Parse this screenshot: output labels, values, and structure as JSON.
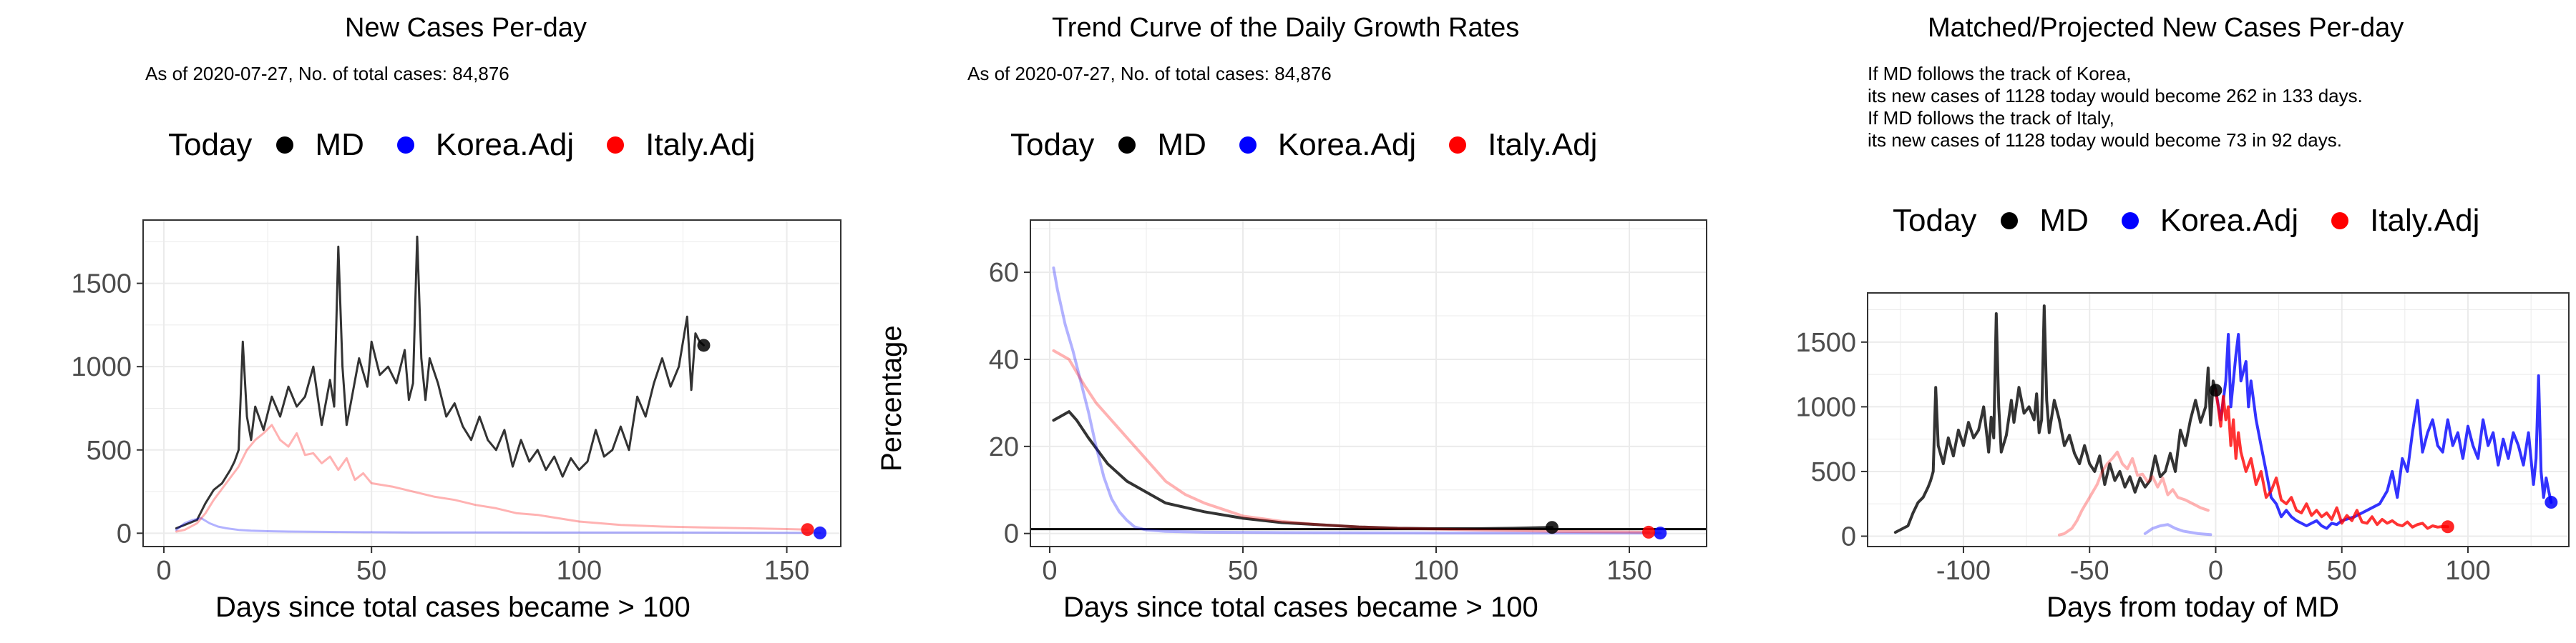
{
  "panels": [
    {
      "title": "New Cases Per-day",
      "subtitle_lines": [
        "As of 2020-07-27, No. of total cases: 84,876"
      ],
      "legend_title": "Today",
      "legend": [
        {
          "label": "MD",
          "color": "#000000"
        },
        {
          "label": "Korea.Adj",
          "color": "#0000ff"
        },
        {
          "label": "Italy.Adj",
          "color": "#ff0000"
        }
      ]
    },
    {
      "title": "Trend Curve of the Daily Growth Rates",
      "subtitle_lines": [
        "As of 2020-07-27, No. of total cases: 84,876"
      ],
      "legend_title": "Today",
      "legend": [
        {
          "label": "MD",
          "color": "#000000"
        },
        {
          "label": "Korea.Adj",
          "color": "#0000ff"
        },
        {
          "label": "Italy.Adj",
          "color": "#ff0000"
        }
      ]
    },
    {
      "title": "Matched/Projected New Cases Per-day",
      "subtitle_lines": [
        "If MD follows the track of Korea,",
        "its new cases of 1128 today would become 262 in 133 days.",
        "If MD follows the track of Italy,",
        "its new cases of 1128 today would become 73 in 92 days."
      ],
      "legend_title": "Today",
      "legend": [
        {
          "label": "MD",
          "color": "#000000"
        },
        {
          "label": "Korea.Adj",
          "color": "#0000ff"
        },
        {
          "label": "Italy.Adj",
          "color": "#ff0000"
        }
      ]
    }
  ],
  "chart_data": [
    {
      "type": "line",
      "title": "New Cases Per-day",
      "xlabel": "Days since total cases became > 100",
      "ylabel": "",
      "xlim": [
        -5,
        163
      ],
      "ylim": [
        -80,
        1880
      ],
      "xticks": [
        0,
        50,
        100,
        150
      ],
      "yticks": [
        0,
        500,
        1000,
        1500
      ],
      "grid": true,
      "legend_position": "top",
      "series": [
        {
          "name": "MD",
          "color": "#000000",
          "opacity": 0.8,
          "width": 3,
          "x": [
            3,
            5,
            8,
            10,
            12,
            14,
            16,
            17,
            18,
            19,
            20,
            21,
            22,
            24,
            26,
            28,
            30,
            32,
            34,
            36,
            38,
            40,
            41,
            42,
            43,
            44,
            45,
            47,
            49,
            50,
            52,
            54,
            56,
            58,
            59,
            60,
            61,
            62,
            63,
            64,
            66,
            68,
            70,
            72,
            74,
            76,
            78,
            80,
            82,
            84,
            86,
            88,
            90,
            92,
            94,
            96,
            98,
            100,
            102,
            104,
            106,
            108,
            110,
            112,
            114,
            116,
            118,
            120,
            122,
            124,
            126,
            127,
            128,
            129,
            130
          ],
          "y": [
            30,
            50,
            80,
            180,
            260,
            300,
            380,
            430,
            500,
            1150,
            700,
            560,
            760,
            620,
            820,
            700,
            880,
            760,
            820,
            1000,
            650,
            920,
            760,
            1720,
            1000,
            650,
            780,
            1050,
            880,
            1150,
            950,
            1000,
            900,
            1100,
            800,
            900,
            1780,
            1050,
            800,
            1050,
            900,
            700,
            780,
            640,
            560,
            700,
            560,
            500,
            620,
            400,
            560,
            430,
            500,
            380,
            460,
            340,
            450,
            380,
            430,
            620,
            460,
            500,
            640,
            500,
            820,
            700,
            900,
            1050,
            880,
            1000,
            1300,
            860,
            1200,
            1150,
            1128
          ],
          "point": [
            130,
            1128
          ]
        },
        {
          "name": "Korea.Adj",
          "color": "#0000ff",
          "opacity": 0.3,
          "width": 3,
          "x": [
            3,
            5,
            7,
            9,
            11,
            13,
            15,
            18,
            21,
            25,
            30,
            40,
            50,
            60,
            80,
            100,
            120,
            140,
            158
          ],
          "y": [
            20,
            60,
            80,
            90,
            60,
            40,
            30,
            20,
            15,
            12,
            10,
            8,
            6,
            5,
            5,
            4,
            4,
            3,
            2
          ],
          "point": [
            158,
            2
          ]
        },
        {
          "name": "Italy.Adj",
          "color": "#ff0000",
          "opacity": 0.3,
          "width": 3,
          "x": [
            3,
            5,
            8,
            10,
            12,
            15,
            18,
            20,
            22,
            24,
            26,
            28,
            30,
            32,
            34,
            36,
            38,
            40,
            42,
            44,
            46,
            48,
            50,
            55,
            60,
            65,
            70,
            75,
            80,
            85,
            90,
            95,
            100,
            105,
            110,
            115,
            120,
            130,
            140,
            150,
            155
          ],
          "y": [
            10,
            20,
            60,
            120,
            200,
            300,
            400,
            500,
            560,
            600,
            650,
            560,
            520,
            600,
            470,
            480,
            420,
            460,
            380,
            450,
            320,
            360,
            300,
            280,
            250,
            220,
            200,
            170,
            150,
            120,
            110,
            90,
            70,
            60,
            50,
            45,
            40,
            35,
            30,
            25,
            22
          ],
          "point": [
            155,
            22
          ]
        }
      ]
    },
    {
      "type": "line",
      "title": "Trend Curve of the Daily Growth Rates",
      "xlabel": "Days since total cases became > 100",
      "ylabel": "Percentage",
      "xlim": [
        -5,
        170
      ],
      "ylim": [
        -3,
        72
      ],
      "xticks": [
        0,
        50,
        100,
        150
      ],
      "yticks": [
        0,
        20,
        40,
        60
      ],
      "grid": true,
      "hline": 1,
      "legend_position": "top",
      "series": [
        {
          "name": "MD",
          "color": "#000000",
          "opacity": 0.8,
          "width": 4,
          "x": [
            1,
            3,
            5,
            7,
            10,
            15,
            20,
            30,
            40,
            50,
            60,
            70,
            80,
            90,
            100,
            110,
            120,
            130
          ],
          "y": [
            26,
            27,
            28,
            26,
            22,
            16,
            12,
            7,
            5,
            3.5,
            2.5,
            2,
            1.5,
            1.2,
            1.1,
            1.1,
            1.2,
            1.4
          ],
          "point": [
            130,
            1.4
          ]
        },
        {
          "name": "Korea.Adj",
          "color": "#0000ff",
          "opacity": 0.3,
          "width": 4,
          "x": [
            1,
            2,
            4,
            6,
            8,
            10,
            12,
            14,
            16,
            18,
            20,
            22,
            25,
            30,
            40,
            60,
            100,
            158
          ],
          "y": [
            61,
            56,
            48,
            42,
            35,
            28,
            20,
            13,
            8,
            5,
            3,
            1.5,
            0.8,
            0.5,
            0.3,
            0.2,
            0.1,
            0.1
          ],
          "point": [
            158,
            0.1
          ]
        },
        {
          "name": "Italy.Adj",
          "color": "#ff0000",
          "opacity": 0.3,
          "width": 4,
          "x": [
            1,
            3,
            5,
            7,
            9,
            12,
            15,
            18,
            21,
            24,
            27,
            30,
            35,
            40,
            45,
            50,
            60,
            70,
            80,
            90,
            110,
            130,
            155
          ],
          "y": [
            42,
            41,
            40,
            37,
            34,
            30,
            27,
            24,
            21,
            18,
            15,
            12,
            9,
            7,
            5.5,
            4,
            2.8,
            2,
            1.5,
            1.2,
            0.8,
            0.5,
            0.3
          ],
          "point": [
            155,
            0.3
          ]
        }
      ]
    },
    {
      "type": "line",
      "title": "Matched/Projected New Cases Per-day",
      "xlabel": "Days from today of MD",
      "ylabel": "",
      "xlim": [
        -138,
        140
      ],
      "ylim": [
        -80,
        1880
      ],
      "xticks": [
        -100,
        -50,
        0,
        50,
        100
      ],
      "yticks": [
        0,
        500,
        1000,
        1500
      ],
      "grid": true,
      "legend_position": "top",
      "series": [
        {
          "name": "MD",
          "color": "#000000",
          "opacity": 0.8,
          "width": 4,
          "x": [
            -127,
            -125,
            -122,
            -120,
            -118,
            -116,
            -114,
            -113,
            -112,
            -111,
            -110,
            -108,
            -106,
            -104,
            -102,
            -100,
            -98,
            -96,
            -94,
            -92,
            -90,
            -89,
            -88,
            -87,
            -86,
            -85,
            -83,
            -81,
            -80,
            -78,
            -76,
            -74,
            -72,
            -71,
            -70,
            -69,
            -68,
            -67,
            -66,
            -64,
            -62,
            -60,
            -58,
            -56,
            -54,
            -52,
            -50,
            -48,
            -46,
            -44,
            -42,
            -40,
            -38,
            -36,
            -34,
            -32,
            -30,
            -28,
            -26,
            -24,
            -22,
            -20,
            -18,
            -16,
            -14,
            -12,
            -10,
            -8,
            -6,
            -4,
            -3,
            -2,
            -1,
            0
          ],
          "y": [
            30,
            50,
            80,
            180,
            260,
            300,
            380,
            430,
            500,
            1150,
            700,
            560,
            760,
            620,
            820,
            700,
            880,
            760,
            820,
            1000,
            650,
            920,
            760,
            1720,
            1000,
            650,
            780,
            1050,
            880,
            1150,
            950,
            1000,
            900,
            1100,
            800,
            900,
            1780,
            1050,
            800,
            1050,
            900,
            700,
            780,
            640,
            560,
            700,
            560,
            500,
            620,
            400,
            560,
            430,
            500,
            380,
            460,
            340,
            450,
            380,
            430,
            620,
            460,
            500,
            640,
            500,
            820,
            700,
            900,
            1050,
            880,
            1000,
            1300,
            860,
            1200,
            1128
          ],
          "point": [
            0,
            1128
          ]
        },
        {
          "name": "Korea.Adj",
          "color": "#0000ff",
          "opacity": 0.3,
          "width": 4,
          "x": [
            -28,
            -25,
            -22,
            -19,
            -16,
            -13,
            -10,
            -7,
            -4,
            -2
          ],
          "y": [
            20,
            60,
            80,
            90,
            60,
            40,
            30,
            20,
            15,
            12
          ],
          "point": null
        },
        {
          "name": "Italy.Adj",
          "color": "#ff0000",
          "opacity": 0.3,
          "width": 4,
          "x": [
            -62,
            -60,
            -57,
            -55,
            -53,
            -50,
            -47,
            -45,
            -43,
            -41,
            -39,
            -37,
            -35,
            -33,
            -31,
            -29,
            -27,
            -25,
            -23,
            -21,
            -19,
            -17,
            -15,
            -12,
            -9,
            -6,
            -3
          ],
          "y": [
            10,
            20,
            60,
            120,
            200,
            300,
            400,
            500,
            560,
            600,
            650,
            560,
            520,
            600,
            470,
            480,
            420,
            460,
            380,
            450,
            320,
            360,
            300,
            280,
            250,
            220,
            200
          ],
          "point": null
        },
        {
          "name": "Korea.Adj",
          "color": "#0000ff",
          "opacity": 0.8,
          "width": 4,
          "x": [
            0,
            2,
            4,
            5,
            6,
            8,
            9,
            10,
            12,
            13,
            14,
            16,
            18,
            20,
            22,
            24,
            26,
            28,
            30,
            32,
            34,
            36,
            38,
            40,
            42,
            44,
            46,
            48,
            50,
            55,
            60,
            65,
            68,
            70,
            72,
            74,
            76,
            78,
            80,
            82,
            84,
            86,
            88,
            90,
            92,
            94,
            96,
            98,
            100,
            102,
            104,
            106,
            108,
            110,
            112,
            114,
            116,
            118,
            120,
            122,
            124,
            126,
            127,
            128,
            129,
            130,
            131,
            132,
            133
          ],
          "y": [
            1128,
            900,
            1200,
            1560,
            1000,
            1400,
            1560,
            1200,
            1350,
            1000,
            1200,
            900,
            700,
            500,
            300,
            250,
            150,
            200,
            150,
            120,
            100,
            80,
            100,
            120,
            80,
            60,
            100,
            90,
            120,
            150,
            200,
            250,
            350,
            500,
            300,
            600,
            500,
            800,
            1050,
            650,
            800,
            900,
            700,
            650,
            900,
            700,
            800,
            600,
            850,
            700,
            600,
            900,
            700,
            800,
            550,
            750,
            600,
            800,
            700,
            550,
            800,
            400,
            600,
            1240,
            500,
            300,
            450,
            350,
            262
          ],
          "point": [
            133,
            262
          ]
        },
        {
          "name": "Italy.Adj",
          "color": "#ff0000",
          "opacity": 0.8,
          "width": 4,
          "x": [
            0,
            1,
            2,
            3,
            4,
            5,
            6,
            7,
            8,
            9,
            10,
            12,
            14,
            16,
            18,
            20,
            22,
            24,
            26,
            28,
            30,
            32,
            34,
            36,
            38,
            40,
            42,
            44,
            46,
            48,
            50,
            52,
            54,
            56,
            58,
            60,
            62,
            64,
            66,
            68,
            70,
            72,
            74,
            76,
            78,
            80,
            82,
            84,
            86,
            88,
            90,
            92
          ],
          "y": [
            1128,
            1000,
            850,
            1080,
            900,
            1000,
            700,
            900,
            600,
            800,
            650,
            500,
            600,
            400,
            500,
            300,
            350,
            450,
            280,
            250,
            300,
            200,
            180,
            250,
            160,
            200,
            150,
            180,
            130,
            220,
            100,
            160,
            120,
            200,
            110,
            100,
            150,
            90,
            130,
            100,
            120,
            90,
            80,
            110,
            70,
            90,
            100,
            60,
            80,
            70,
            75,
            73
          ],
          "point": [
            92,
            73
          ]
        }
      ]
    }
  ]
}
